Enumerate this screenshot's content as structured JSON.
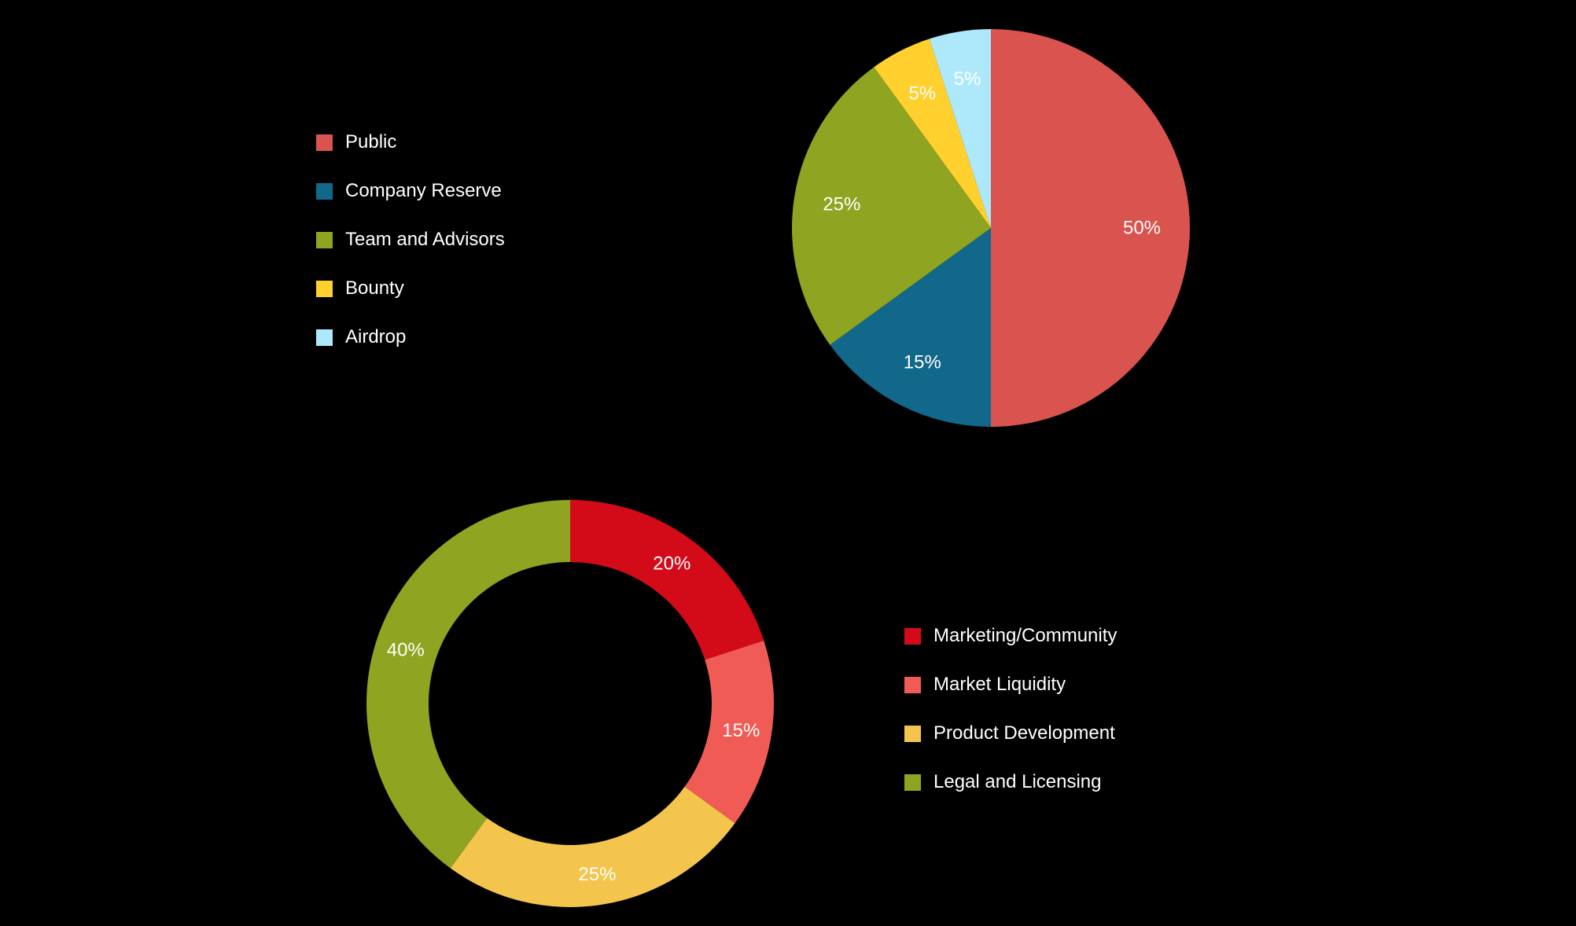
{
  "chart_data": [
    {
      "type": "pie",
      "title": "",
      "legend_position": "left",
      "categories": [
        "Public",
        "Company Reserve",
        "Team and Advisors",
        "Bounty",
        "Airdrop"
      ],
      "values": [
        50,
        15,
        25,
        5,
        5
      ],
      "value_labels": [
        "50%",
        "15%",
        "25%",
        "5%",
        "5%"
      ],
      "colors": [
        "#d9534f",
        "#11688a",
        "#8fa421",
        "#ffd02e",
        "#aee9fb"
      ]
    },
    {
      "type": "pie",
      "subtype": "donut",
      "title": "",
      "legend_position": "right",
      "categories": [
        "Marketing/Community",
        "Market Liquidity",
        "Product Development",
        "Legal and Licensing"
      ],
      "values": [
        20,
        15,
        25,
        40
      ],
      "value_labels": [
        "20%",
        "15%",
        "25%",
        "40%"
      ],
      "colors": [
        "#d30b19",
        "#f05c55",
        "#f4c54c",
        "#8fa421"
      ]
    }
  ]
}
